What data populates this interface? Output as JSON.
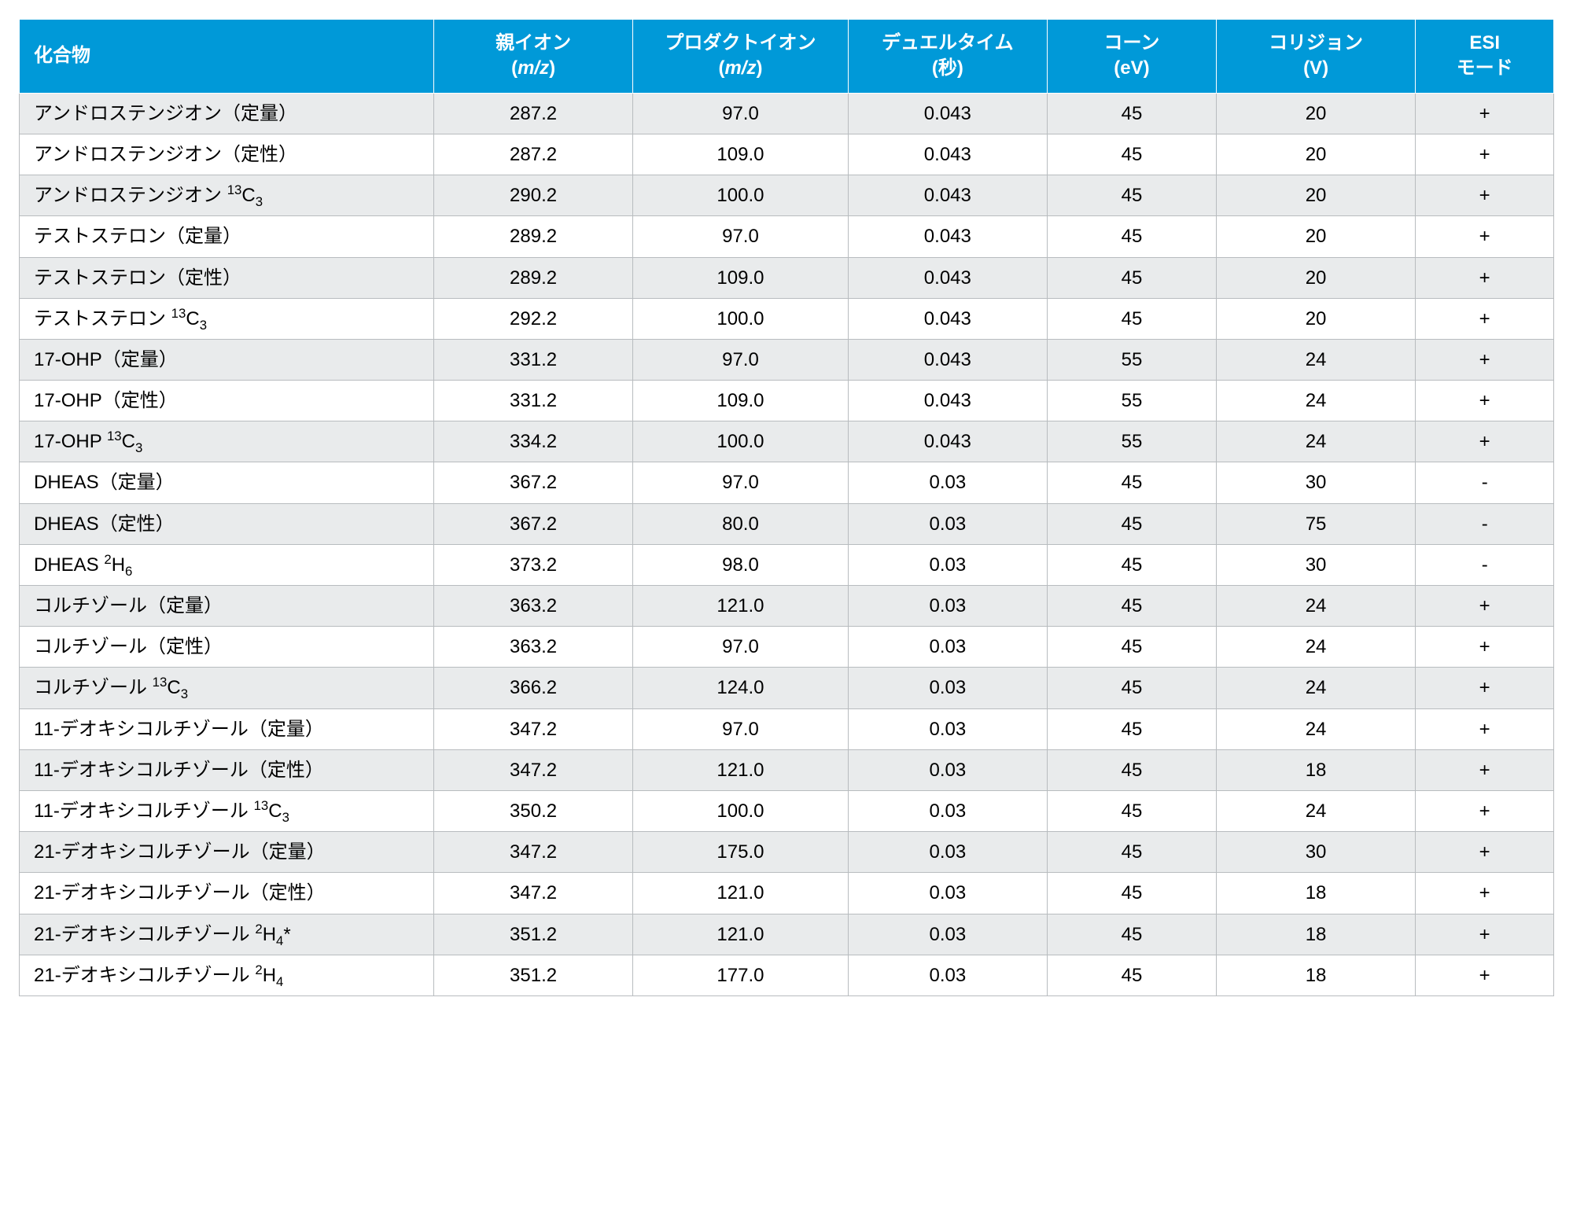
{
  "table": {
    "type": "table",
    "header_bg": "#0099d8",
    "header_text_color": "#ffffff",
    "row_odd_bg": "#e9ebec",
    "row_even_bg": "#ffffff",
    "cell_border_color": "#b8bcbf",
    "header_border_color": "#ffffff",
    "cell_text_color": "#000000",
    "header_fontsize": 24,
    "cell_fontsize": 24,
    "columns": [
      {
        "key": "compound",
        "label": "化合物",
        "unit": "",
        "width_pct": 27,
        "align": "left"
      },
      {
        "key": "parent",
        "label": "親イオン",
        "unit": "(m/z)",
        "width_pct": 13,
        "align": "center"
      },
      {
        "key": "product",
        "label": "プロダクトイオン",
        "unit": "(m/z)",
        "width_pct": 14,
        "align": "center"
      },
      {
        "key": "dwell",
        "label": "デュエルタイム",
        "unit": "(秒)",
        "width_pct": 13,
        "align": "center"
      },
      {
        "key": "cone",
        "label": "コーン",
        "unit": "(eV)",
        "width_pct": 11,
        "align": "center"
      },
      {
        "key": "collision",
        "label": "コリジョン",
        "unit": "(V)",
        "width_pct": 13,
        "align": "center"
      },
      {
        "key": "esi",
        "label": "ESI",
        "unit": "モード",
        "width_pct": 9,
        "align": "center"
      }
    ],
    "rows": [
      {
        "compound": "アンドロステンジオン（定量）",
        "parent": "287.2",
        "product": "97.0",
        "dwell": "0.043",
        "cone": "45",
        "collision": "20",
        "esi": "+"
      },
      {
        "compound": "アンドロステンジオン（定性）",
        "parent": "287.2",
        "product": "109.0",
        "dwell": "0.043",
        "cone": "45",
        "collision": "20",
        "esi": "+"
      },
      {
        "compound": "アンドロステンジオン {sup}13{/sup}C{sub}3{/sub}",
        "parent": "290.2",
        "product": "100.0",
        "dwell": "0.043",
        "cone": "45",
        "collision": "20",
        "esi": "+"
      },
      {
        "compound": "テストステロン（定量）",
        "parent": "289.2",
        "product": "97.0",
        "dwell": "0.043",
        "cone": "45",
        "collision": "20",
        "esi": "+"
      },
      {
        "compound": "テストステロン（定性）",
        "parent": "289.2",
        "product": "109.0",
        "dwell": "0.043",
        "cone": "45",
        "collision": "20",
        "esi": "+"
      },
      {
        "compound": "テストステロン {sup}13{/sup}C{sub}3{/sub}",
        "parent": "292.2",
        "product": "100.0",
        "dwell": "0.043",
        "cone": "45",
        "collision": "20",
        "esi": "+"
      },
      {
        "compound": "17-OHP（定量）",
        "parent": "331.2",
        "product": "97.0",
        "dwell": "0.043",
        "cone": "55",
        "collision": "24",
        "esi": "+"
      },
      {
        "compound": "17-OHP（定性）",
        "parent": "331.2",
        "product": "109.0",
        "dwell": "0.043",
        "cone": "55",
        "collision": "24",
        "esi": "+"
      },
      {
        "compound": "17-OHP {sup}13{/sup}C{sub}3{/sub}",
        "parent": "334.2",
        "product": "100.0",
        "dwell": "0.043",
        "cone": "55",
        "collision": "24",
        "esi": "+"
      },
      {
        "compound": "DHEAS（定量）",
        "parent": "367.2",
        "product": "97.0",
        "dwell": "0.03",
        "cone": "45",
        "collision": "30",
        "esi": "-"
      },
      {
        "compound": "DHEAS（定性）",
        "parent": "367.2",
        "product": "80.0",
        "dwell": "0.03",
        "cone": "45",
        "collision": "75",
        "esi": "-"
      },
      {
        "compound": "DHEAS {sup}2{/sup}H{sub}6{/sub}",
        "parent": "373.2",
        "product": "98.0",
        "dwell": "0.03",
        "cone": "45",
        "collision": "30",
        "esi": "-"
      },
      {
        "compound": "コルチゾール（定量）",
        "parent": "363.2",
        "product": "121.0",
        "dwell": "0.03",
        "cone": "45",
        "collision": "24",
        "esi": "+"
      },
      {
        "compound": "コルチゾール（定性）",
        "parent": "363.2",
        "product": "97.0",
        "dwell": "0.03",
        "cone": "45",
        "collision": "24",
        "esi": "+"
      },
      {
        "compound": "コルチゾール {sup}13{/sup}C{sub}3{/sub}",
        "parent": "366.2",
        "product": "124.0",
        "dwell": "0.03",
        "cone": "45",
        "collision": "24",
        "esi": "+"
      },
      {
        "compound": "11-デオキシコルチゾール（定量）",
        "parent": "347.2",
        "product": "97.0",
        "dwell": "0.03",
        "cone": "45",
        "collision": "24",
        "esi": "+"
      },
      {
        "compound": "11-デオキシコルチゾール（定性）",
        "parent": "347.2",
        "product": "121.0",
        "dwell": "0.03",
        "cone": "45",
        "collision": "18",
        "esi": "+"
      },
      {
        "compound": "11-デオキシコルチゾール {sup}13{/sup}C{sub}3{/sub}",
        "parent": "350.2",
        "product": "100.0",
        "dwell": "0.03",
        "cone": "45",
        "collision": "24",
        "esi": "+"
      },
      {
        "compound": "21-デオキシコルチゾール（定量）",
        "parent": "347.2",
        "product": "175.0",
        "dwell": "0.03",
        "cone": "45",
        "collision": "30",
        "esi": "+"
      },
      {
        "compound": "21-デオキシコルチゾール（定性）",
        "parent": "347.2",
        "product": "121.0",
        "dwell": "0.03",
        "cone": "45",
        "collision": "18",
        "esi": "+"
      },
      {
        "compound": "21-デオキシコルチゾール {sup}2{/sup}H{sub}4{/sub}*",
        "parent": "351.2",
        "product": "121.0",
        "dwell": "0.03",
        "cone": "45",
        "collision": "18",
        "esi": "+"
      },
      {
        "compound": "21-デオキシコルチゾール {sup}2{/sup}H{sub}4{/sub}",
        "parent": "351.2",
        "product": "177.0",
        "dwell": "0.03",
        "cone": "45",
        "collision": "18",
        "esi": "+"
      }
    ]
  }
}
